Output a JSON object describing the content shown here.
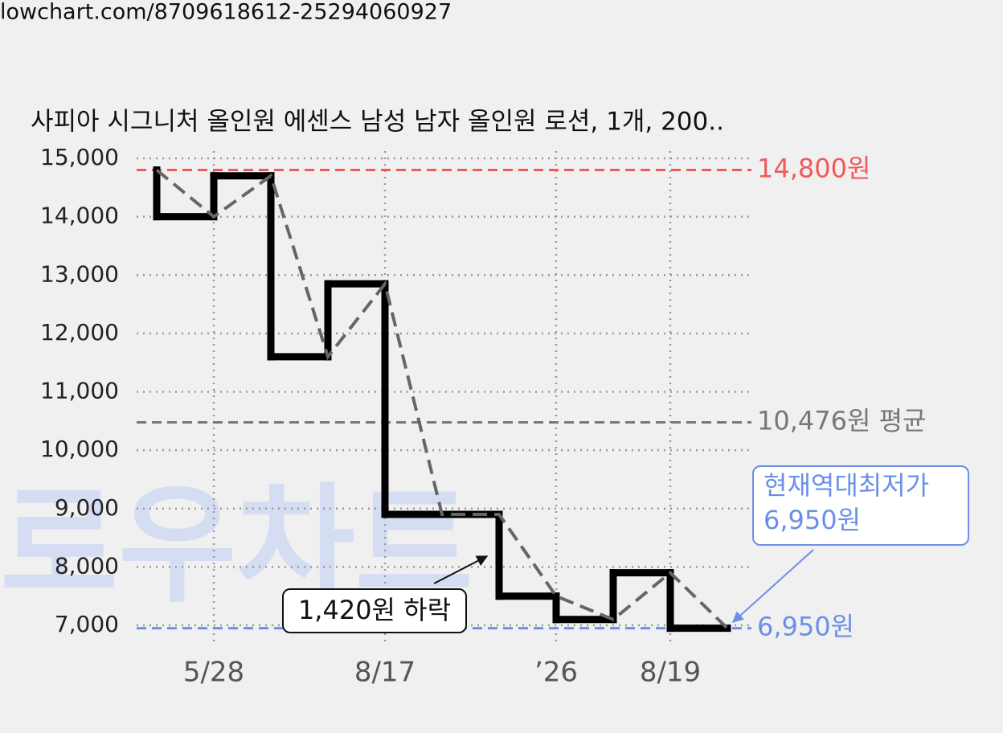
{
  "url": "lowchart.com/8709618612-25294060927",
  "watermark": "로우차트",
  "chart_data": {
    "type": "step",
    "title": "사피아 시그니처 올인원 에센스 남성 남자 올인원 로션, 1개, 200..",
    "categories": [
      null,
      "5/28",
      null,
      null,
      "8/17",
      null,
      null,
      "’26",
      null,
      "8/19",
      null
    ],
    "series": [
      {
        "color": "#000000",
        "trend_color": "#666666",
        "values": [
          14800,
          14000,
          14700,
          11600,
          12850,
          8900,
          8900,
          7500,
          7100,
          7900,
          6950
        ]
      }
    ],
    "ylim": [
      7000,
      15000
    ],
    "yticks": [
      {
        "value": 7000,
        "label": "7,000"
      },
      {
        "value": 8000,
        "label": "8,000"
      },
      {
        "value": 9000,
        "label": "9,000"
      },
      {
        "value": 10000,
        "label": "10,000"
      },
      {
        "value": 11000,
        "label": "11,000"
      },
      {
        "value": 12000,
        "label": "12,000"
      },
      {
        "value": 13000,
        "label": "13,000"
      },
      {
        "value": 14000,
        "label": "14,000"
      },
      {
        "value": 15000,
        "label": "15,000"
      }
    ],
    "grid": true,
    "reference_lines": [
      {
        "value": 14800,
        "label": "14,800원",
        "color": "#f05a5a"
      },
      {
        "value": 10476,
        "label": "10,476원 평균",
        "color": "#777777"
      },
      {
        "value": 6950,
        "label": "6,950원",
        "color": "#6b8fe8"
      }
    ],
    "annotations": [
      {
        "text": "1,420원 하락"
      },
      {
        "lines": [
          "현재역대최저가",
          "6,950원"
        ],
        "color": "#6b8fe8"
      }
    ]
  }
}
